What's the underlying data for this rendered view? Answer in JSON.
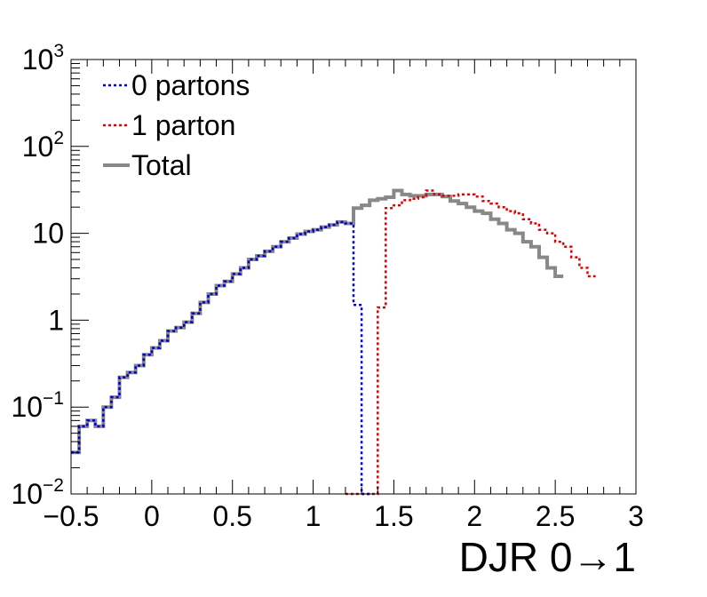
{
  "chart_data": {
    "type": "line",
    "title": "",
    "xlabel": "DJR 0→1",
    "ylabel": "",
    "xlim": [
      -0.5,
      3.0
    ],
    "ylim": [
      0.01,
      1000
    ],
    "yscale": "log",
    "bin_width": 0.05,
    "x_ticks": [
      {
        "value": -0.5,
        "label": "−0.5"
      },
      {
        "value": 0,
        "label": "0"
      },
      {
        "value": 0.5,
        "label": "0.5"
      },
      {
        "value": 1,
        "label": "1"
      },
      {
        "value": 1.5,
        "label": "1.5"
      },
      {
        "value": 2,
        "label": "2"
      },
      {
        "value": 2.5,
        "label": "2.5"
      },
      {
        "value": 3,
        "label": "3"
      }
    ],
    "y_ticks": [
      {
        "value": 0.01,
        "base": "10",
        "exp": "−2"
      },
      {
        "value": 0.1,
        "base": "10",
        "exp": "−1"
      },
      {
        "value": 1,
        "base": "1",
        "exp": ""
      },
      {
        "value": 10,
        "base": "10",
        "exp": ""
      },
      {
        "value": 100,
        "base": "10",
        "exp": "2"
      },
      {
        "value": 1000,
        "base": "10",
        "exp": "3"
      }
    ],
    "legend_position": "top-left",
    "series": [
      {
        "name": "0 partons",
        "color": "#0000cc",
        "style": "dotted",
        "x_start": -0.5,
        "values": [
          0.03,
          0.06,
          0.07,
          0.06,
          0.1,
          0.13,
          0.22,
          0.25,
          0.3,
          0.4,
          0.48,
          0.58,
          0.75,
          0.82,
          0.95,
          1.2,
          1.6,
          2.0,
          2.5,
          2.8,
          3.4,
          4.0,
          5.0,
          5.5,
          6.2,
          7.0,
          8.0,
          8.8,
          9.8,
          10.5,
          11.0,
          11.8,
          12.5,
          13.5,
          13.0,
          1.5,
          0.01
        ]
      },
      {
        "name": "1 parton",
        "color": "#dd0000",
        "style": "dotted",
        "x_start": 1.2,
        "values": [
          0.01,
          0.01,
          0.01,
          0.01,
          1.4,
          19.5,
          21,
          24,
          25,
          26,
          31,
          28,
          27,
          27,
          28,
          28,
          26.5,
          23.5,
          22,
          20,
          18,
          17,
          14.5,
          13,
          11,
          10,
          8,
          7,
          5.3,
          4,
          3.2
        ]
      },
      {
        "name": "Total",
        "color": "#888888",
        "style": "solid",
        "x_start": -0.5,
        "values": [
          0.03,
          0.06,
          0.07,
          0.06,
          0.1,
          0.13,
          0.22,
          0.25,
          0.3,
          0.4,
          0.48,
          0.58,
          0.75,
          0.82,
          0.95,
          1.2,
          1.6,
          2.0,
          2.5,
          2.8,
          3.4,
          4.0,
          5.0,
          5.5,
          6.2,
          7.0,
          8.0,
          8.8,
          9.8,
          10.5,
          11.0,
          11.8,
          12.5,
          13.5,
          13.0,
          19.5,
          21,
          24,
          25,
          26,
          31,
          28,
          27,
          27,
          28,
          28,
          26.5,
          23.5,
          22,
          20,
          18,
          17,
          14.5,
          13,
          11,
          10,
          8,
          7,
          5.3,
          4,
          3.2
        ]
      }
    ]
  }
}
